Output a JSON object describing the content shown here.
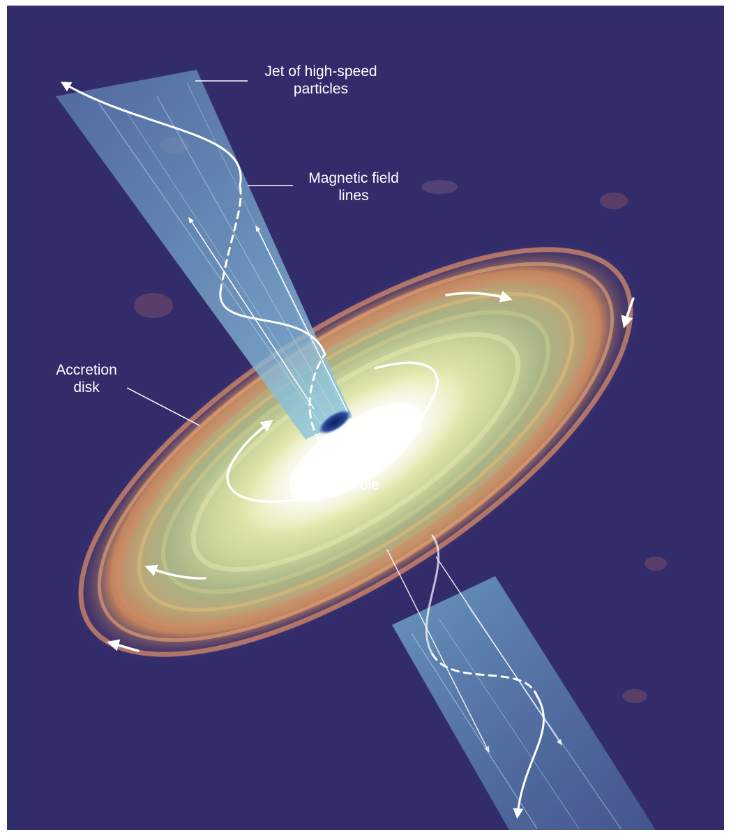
{
  "labels": {
    "jet": [
      "Jet of high-speed",
      "particles"
    ],
    "magnetic": [
      "Magnetic field",
      "lines"
    ],
    "accretion": [
      "Accretion",
      "disk"
    ],
    "black_hole": [
      "Black",
      "hole"
    ]
  },
  "colors": {
    "background": "#332c6b",
    "jet": "#7ab8d8",
    "disk_core": "#ffffff",
    "disk_inner": "#e8ecb0",
    "disk_mid": "#b8c896",
    "disk_outer": "#e89a6a",
    "black_hole": "#1a2a6a",
    "annotation": "#ffffff"
  }
}
